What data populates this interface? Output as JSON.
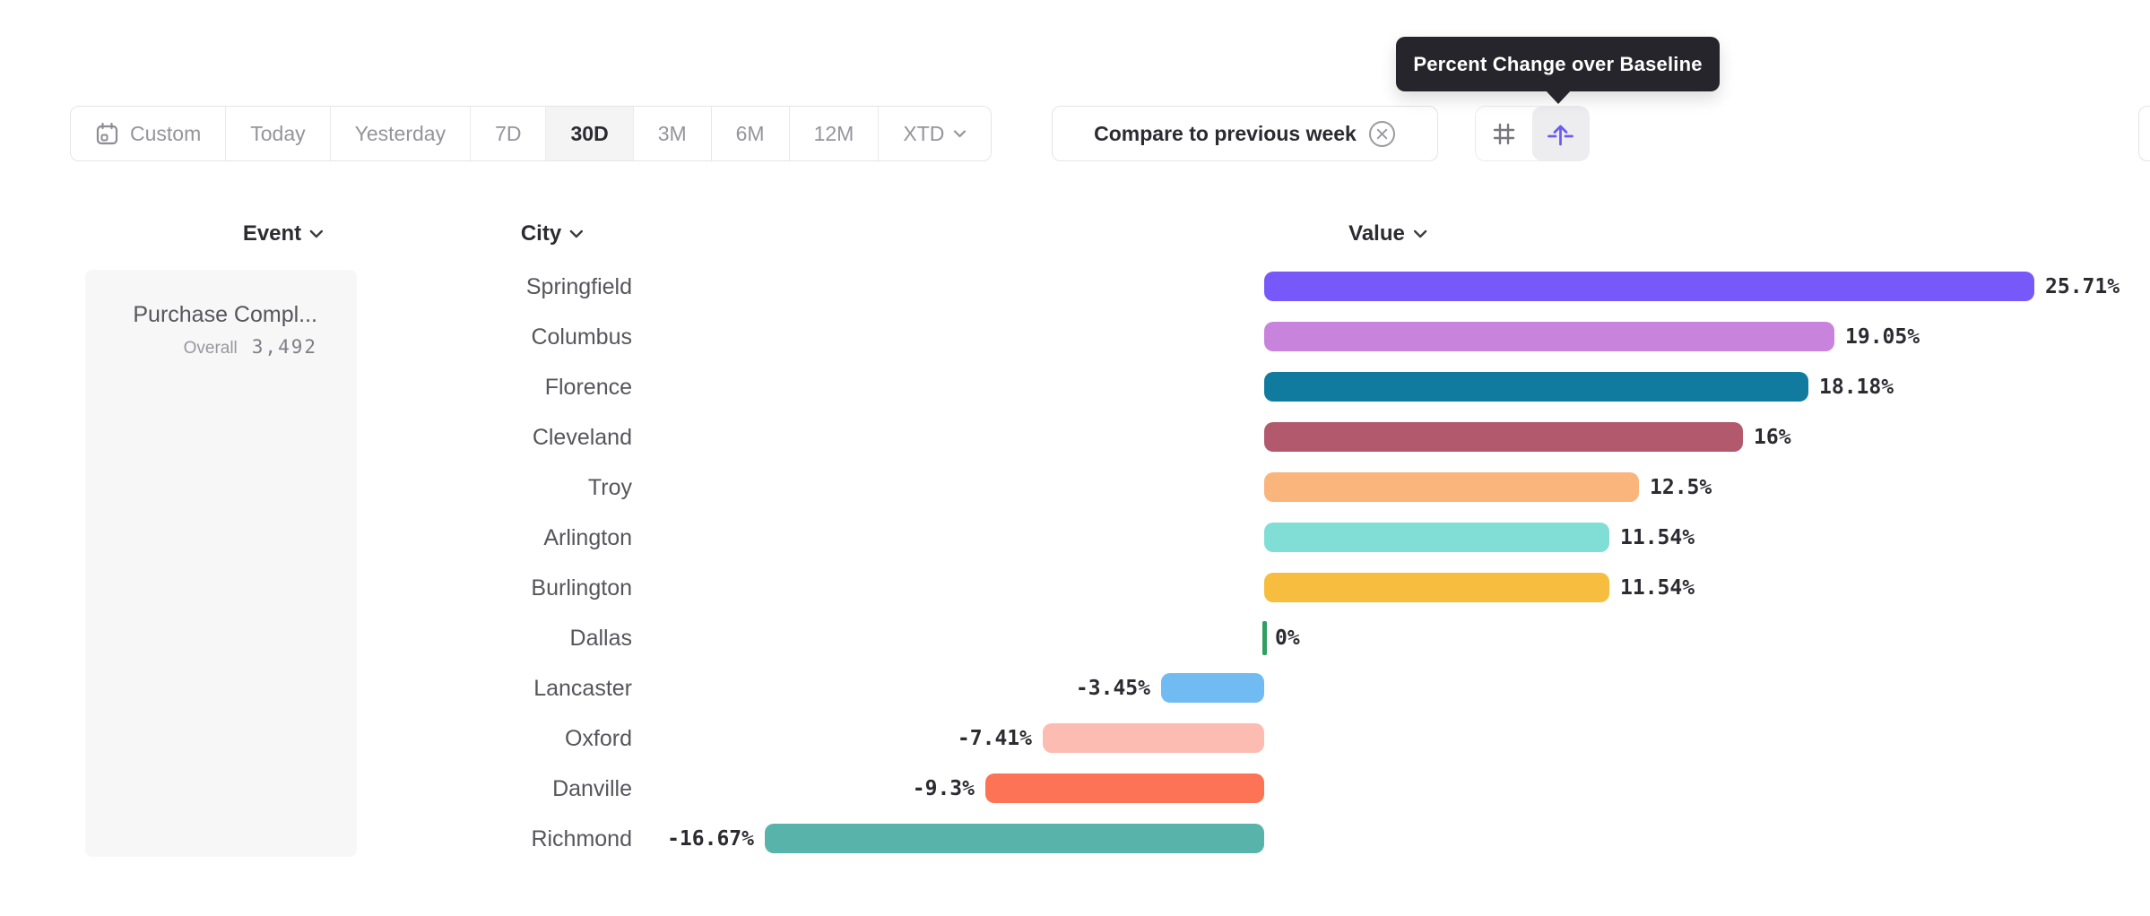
{
  "tooltip": {
    "text": "Percent Change over Baseline"
  },
  "toolbar": {
    "date_tabs": [
      {
        "label": "Custom",
        "icon": "calendar-icon",
        "active": false
      },
      {
        "label": "Today",
        "active": false
      },
      {
        "label": "Yesterday",
        "active": false
      },
      {
        "label": "7D",
        "active": false
      },
      {
        "label": "30D",
        "active": true
      },
      {
        "label": "3M",
        "active": false
      },
      {
        "label": "6M",
        "active": false
      },
      {
        "label": "12M",
        "active": false
      },
      {
        "label": "XTD",
        "active": false,
        "chevron": true
      }
    ],
    "compare_chip": {
      "label": "Compare to previous week",
      "icon": "x-circle-icon"
    },
    "view_toggle": [
      {
        "icon": "hash-icon",
        "active": false
      },
      {
        "icon": "percent-change-icon",
        "active": true
      }
    ]
  },
  "columns": {
    "event": "Event",
    "city": "City",
    "value": "Value"
  },
  "event_panel": {
    "name": "Purchase Compl...",
    "overall_label": "Overall",
    "overall_value": "3,492"
  },
  "colors": {
    "accent_purple": "#6b5bf2",
    "tooltip_bg": "#26252b",
    "active_tab_bg": "#f4f4f5",
    "border": "#e4e4e7",
    "text_dark": "#2b2b31",
    "text_gray": "#94949b",
    "zero_tick_green": "#2f9e5f"
  },
  "chart_data": {
    "type": "bar",
    "orientation": "horizontal",
    "title": "",
    "xlabel": "",
    "ylabel": "",
    "value_suffix": "%",
    "baseline": 0,
    "xlim": [
      -16.67,
      25.71
    ],
    "grid": false,
    "legend": "none",
    "categories": [
      "Springfield",
      "Columbus",
      "Florence",
      "Cleveland",
      "Troy",
      "Arlington",
      "Burlington",
      "Dallas",
      "Lancaster",
      "Oxford",
      "Danville",
      "Richmond"
    ],
    "values": [
      25.71,
      19.05,
      18.18,
      16,
      12.5,
      11.54,
      11.54,
      0,
      -3.45,
      -7.41,
      -9.3,
      -16.67
    ],
    "labels": [
      "25.71%",
      "19.05%",
      "18.18%",
      "16%",
      "12.5%",
      "11.54%",
      "11.54%",
      "0%",
      "-3.45%",
      "-7.41%",
      "-9.3%",
      "-16.67%"
    ],
    "bar_colors": [
      "#7759fa",
      "#c884dc",
      "#117b9f",
      "#b2596e",
      "#f9b57c",
      "#81ded7",
      "#f6bd3e",
      "#2f9e5f",
      "#71bbf3",
      "#fcbcb2",
      "#fc7356",
      "#58b4aa"
    ]
  }
}
